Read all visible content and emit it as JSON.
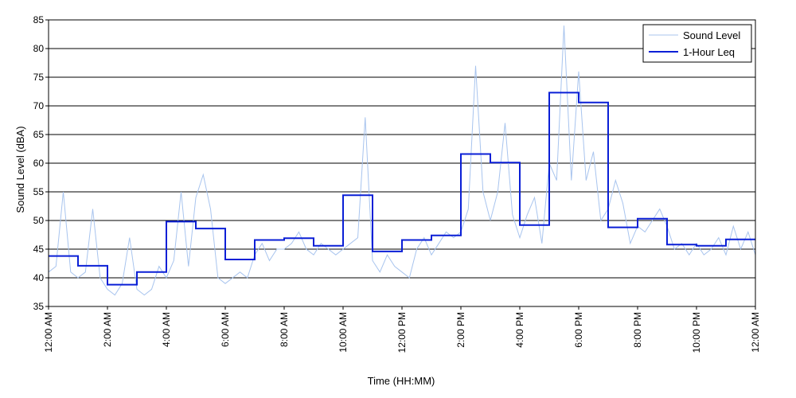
{
  "chart_data": {
    "type": "line",
    "title": "",
    "xlabel": "Time (HH:MM)",
    "ylabel": "Sound Level (dBA)",
    "xlim": [
      0,
      24
    ],
    "ylim": [
      35,
      85
    ],
    "x_ticks": [
      {
        "hour": 0,
        "label": "12:00 AM"
      },
      {
        "hour": 2,
        "label": "2:00 AM"
      },
      {
        "hour": 4,
        "label": "4:00 AM"
      },
      {
        "hour": 6,
        "label": "6:00 AM"
      },
      {
        "hour": 8,
        "label": "8:00 AM"
      },
      {
        "hour": 10,
        "label": "10:00 AM"
      },
      {
        "hour": 12,
        "label": "12:00 PM"
      },
      {
        "hour": 14,
        "label": "2:00 PM"
      },
      {
        "hour": 16,
        "label": "4:00 PM"
      },
      {
        "hour": 18,
        "label": "6:00 PM"
      },
      {
        "hour": 20,
        "label": "8:00 PM"
      },
      {
        "hour": 22,
        "label": "10:00 PM"
      },
      {
        "hour": 24,
        "label": "12:00 AM"
      }
    ],
    "y_ticks": [
      35,
      40,
      45,
      50,
      55,
      60,
      65,
      70,
      75,
      80,
      85
    ],
    "grid": "horizontal",
    "legend_position": "top-right",
    "series": [
      {
        "name": "Sound Level",
        "color": "#a8c4ee",
        "style": "thin-line",
        "x": [
          0.0,
          0.25,
          0.5,
          0.75,
          1.0,
          1.25,
          1.5,
          1.75,
          2.0,
          2.25,
          2.5,
          2.75,
          3.0,
          3.25,
          3.5,
          3.75,
          4.0,
          4.25,
          4.5,
          4.75,
          5.0,
          5.25,
          5.5,
          5.75,
          6.0,
          6.25,
          6.5,
          6.75,
          7.0,
          7.25,
          7.5,
          7.75,
          8.0,
          8.25,
          8.5,
          8.75,
          9.0,
          9.25,
          9.5,
          9.75,
          10.0,
          10.25,
          10.5,
          10.75,
          11.0,
          11.25,
          11.5,
          11.75,
          12.0,
          12.25,
          12.5,
          12.75,
          13.0,
          13.25,
          13.5,
          13.75,
          14.0,
          14.25,
          14.5,
          14.75,
          15.0,
          15.25,
          15.5,
          15.75,
          16.0,
          16.25,
          16.5,
          16.75,
          17.0,
          17.25,
          17.5,
          17.75,
          18.0,
          18.25,
          18.5,
          18.75,
          19.0,
          19.25,
          19.5,
          19.75,
          20.0,
          20.25,
          20.5,
          20.75,
          21.0,
          21.25,
          21.5,
          21.75,
          22.0,
          22.25,
          22.5,
          22.75,
          23.0,
          23.25,
          23.5,
          23.75,
          24.0
        ],
        "y": [
          41,
          42,
          55,
          41,
          40,
          41,
          52,
          40,
          38,
          37,
          39,
          47,
          38,
          37,
          38,
          42,
          40,
          43,
          55,
          42,
          54,
          58,
          52,
          40,
          39,
          40,
          41,
          40,
          44,
          46,
          43,
          45,
          45,
          46,
          48,
          45,
          44,
          46,
          45,
          44,
          45,
          46,
          47,
          68,
          43,
          41,
          44,
          42,
          41,
          40,
          45,
          47,
          44,
          46,
          48,
          47,
          48,
          52,
          77,
          55,
          50,
          55,
          67,
          51,
          47,
          51,
          54,
          46,
          60,
          57,
          84,
          57,
          76,
          57,
          62,
          50,
          52,
          57,
          53,
          46,
          49,
          48,
          50,
          52,
          49,
          45,
          46,
          44,
          46,
          44,
          45,
          47,
          44,
          49,
          45,
          48,
          44
        ]
      },
      {
        "name": "1-Hour Leq",
        "color": "#0a1fd6",
        "style": "step",
        "hours": [
          0,
          1,
          2,
          3,
          4,
          5,
          6,
          7,
          8,
          9,
          10,
          11,
          12,
          13,
          14,
          15,
          16,
          17,
          18,
          19,
          20,
          21,
          22,
          23
        ],
        "values": [
          43.8,
          42.1,
          38.8,
          41.0,
          49.8,
          48.6,
          43.2,
          46.6,
          46.9,
          45.6,
          54.4,
          44.6,
          46.6,
          47.4,
          61.6,
          60.1,
          49.2,
          72.3,
          70.6,
          48.8,
          50.3,
          45.8,
          45.6,
          46.7
        ]
      }
    ]
  }
}
